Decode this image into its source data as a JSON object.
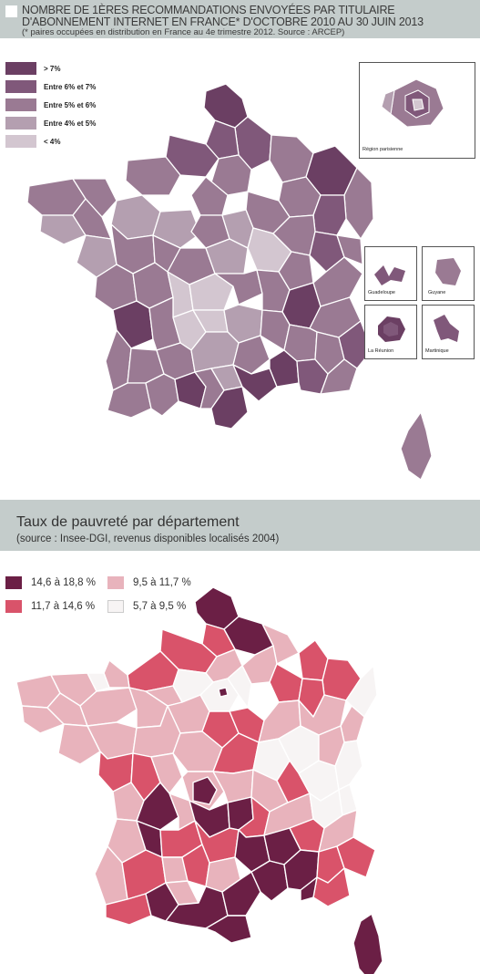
{
  "map1": {
    "title_line1": "NOMBRE DE 1ÈRES RECOMMANDATIONS ENVOYÉES PAR TITULAIRE",
    "title_line2": "D'ABONNEMENT INTERNET EN FRANCE* D'OCTOBRE 2010 AU 30 JUIN 2013",
    "title_line3": "(* paires occupées en distribution en France au 4e trimestre 2012. Source : ARCEP)",
    "legend": [
      {
        "label": "> 7%",
        "color": "#6b3f63"
      },
      {
        "label": "Entre 6% et 7%",
        "color": "#80587a"
      },
      {
        "label": "Entre 5% et 6%",
        "color": "#9a7a93"
      },
      {
        "label": "Entre 4% et 5%",
        "color": "#b49fb0"
      },
      {
        "label": "< 4%",
        "color": "#d3c6d0"
      }
    ],
    "insets": {
      "paris": "Région parisienne",
      "guadeloupe": "Guadeloupe",
      "guyane": "Guyane",
      "reunion": "La Réunion",
      "martinique": "Martinique"
    }
  },
  "map2": {
    "title": "Taux de pauvreté par département",
    "subtitle": "(source : Insee-DGI, revenus disponibles localisés 2004)",
    "legend": [
      {
        "label": "14,6 à 18,8 %",
        "color": "#6b1f45"
      },
      {
        "label": "9,5 à 11,7 %",
        "color": "#e8b3bc"
      },
      {
        "label": "11,7 à 14,6 %",
        "color": "#d9536a"
      },
      {
        "label": "5,7 à 9,5 %",
        "color": "#f7f4f4"
      }
    ]
  }
}
